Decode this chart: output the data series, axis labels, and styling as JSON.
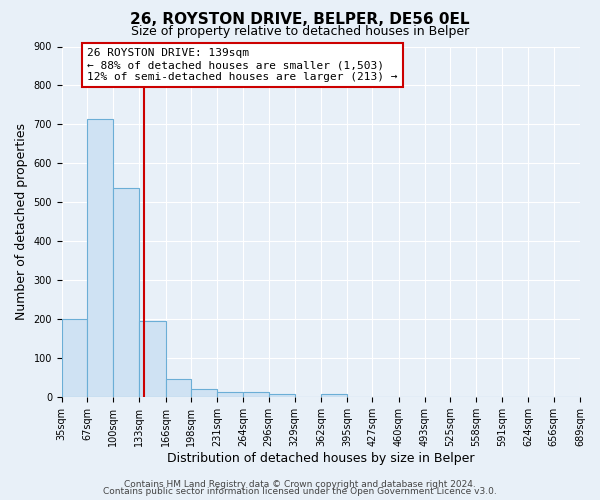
{
  "title": "26, ROYSTON DRIVE, BELPER, DE56 0EL",
  "subtitle": "Size of property relative to detached houses in Belper",
  "xlabel": "Distribution of detached houses by size in Belper",
  "ylabel": "Number of detached properties",
  "bin_edges": [
    35,
    67,
    100,
    133,
    166,
    198,
    231,
    264,
    296,
    329,
    362,
    395,
    427,
    460,
    493,
    525,
    558,
    591,
    624,
    656,
    689
  ],
  "bin_counts": [
    202,
    714,
    537,
    196,
    46,
    21,
    14,
    14,
    8,
    0,
    8,
    0,
    0,
    0,
    0,
    0,
    0,
    0,
    0,
    0
  ],
  "bar_fill_color": "#cfe2f3",
  "bar_edge_color": "#6baed6",
  "property_value": 139,
  "vline_color": "#cc0000",
  "annotation_line1": "26 ROYSTON DRIVE: 139sqm",
  "annotation_line2": "← 88% of detached houses are smaller (1,503)",
  "annotation_line3": "12% of semi-detached houses are larger (213) →",
  "annotation_box_edge_color": "#cc0000",
  "annotation_box_bg": "#ffffff",
  "ylim": [
    0,
    900
  ],
  "yticks": [
    0,
    100,
    200,
    300,
    400,
    500,
    600,
    700,
    800,
    900
  ],
  "tick_labels": [
    "35sqm",
    "67sqm",
    "100sqm",
    "133sqm",
    "166sqm",
    "198sqm",
    "231sqm",
    "264sqm",
    "296sqm",
    "329sqm",
    "362sqm",
    "395sqm",
    "427sqm",
    "460sqm",
    "493sqm",
    "525sqm",
    "558sqm",
    "591sqm",
    "624sqm",
    "656sqm",
    "689sqm"
  ],
  "footer_line1": "Contains HM Land Registry data © Crown copyright and database right 2024.",
  "footer_line2": "Contains public sector information licensed under the Open Government Licence v3.0.",
  "bg_color": "#e8f0f8",
  "plot_bg_color": "#e8f0f8",
  "grid_color": "#ffffff",
  "title_fontsize": 11,
  "subtitle_fontsize": 9,
  "axis_label_fontsize": 9,
  "tick_fontsize": 7,
  "annotation_fontsize": 8,
  "footer_fontsize": 6.5
}
